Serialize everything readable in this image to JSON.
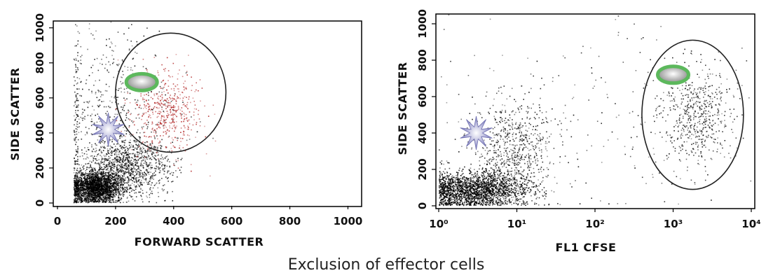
{
  "caption": "Exclusion of effector cells",
  "colors": {
    "main_population": "#000000",
    "gated_population_left": "#b02020",
    "gate_outline": "#222222",
    "effector_marker": "#8c8cc8",
    "target_marker_ring": "#5cb85c",
    "target_marker_fill": "#9a9a9a"
  },
  "chart_data": [
    {
      "type": "scatter",
      "xlabel": "FORWARD SCATTER",
      "ylabel": "SIDE SCATTER",
      "x_scale": "linear",
      "y_scale": "linear",
      "xlim": [
        0,
        1023
      ],
      "ylim": [
        0,
        1023
      ],
      "x_ticks": [
        "0",
        "200",
        "400",
        "600",
        "800",
        "1000"
      ],
      "x_tick_values": [
        0,
        200,
        400,
        600,
        800,
        1000
      ],
      "y_ticks": [
        "0",
        "200",
        "400",
        "600",
        "800",
        "1000"
      ],
      "y_tick_values": [
        0,
        200,
        400,
        600,
        800,
        1000
      ],
      "grid": false,
      "populations": [
        {
          "color": "#000000",
          "count": 2600,
          "x_mean": 130,
          "x_sd": 45,
          "y_mean": 90,
          "y_sd": 45
        },
        {
          "color": "#000000",
          "count": 1100,
          "x_mean": 240,
          "x_sd": 70,
          "y_mean": 210,
          "y_sd": 80
        },
        {
          "color": "#000000",
          "count": 650,
          "x_mean": 170,
          "x_sd": 110,
          "y_mean": 520,
          "y_sd": 260
        },
        {
          "color": "#b02020",
          "count": 500,
          "x_mean": 370,
          "x_sd": 60,
          "y_mean": 520,
          "y_sd": 120
        }
      ],
      "gate": {
        "shape": "ellipse",
        "cx": 390,
        "cy": 630,
        "rx": 190,
        "ry": 340
      },
      "markers": [
        {
          "type": "effector-star",
          "x": 175,
          "y": 420
        },
        {
          "type": "target-cell",
          "x": 290,
          "y": 690
        }
      ]
    },
    {
      "type": "scatter",
      "xlabel": "FL1 CFSE",
      "ylabel": "SIDE SCATTER",
      "x_scale": "log",
      "y_scale": "linear",
      "xlim": [
        1,
        10000
      ],
      "ylim": [
        0,
        1023
      ],
      "x_ticks": [
        "10⁰",
        "10¹",
        "10²",
        "10³",
        "10⁴"
      ],
      "x_tick_values": [
        1,
        10,
        100,
        1000,
        10000
      ],
      "y_ticks": [
        "0",
        "200",
        "400",
        "600",
        "800",
        "1000"
      ],
      "y_tick_values": [
        0,
        200,
        400,
        600,
        800,
        1000
      ],
      "grid": false,
      "populations": [
        {
          "color": "#000000",
          "count": 2700,
          "x_mean": 0.45,
          "x_sd": 0.35,
          "y_mean": 90,
          "y_sd": 50
        },
        {
          "color": "#000000",
          "count": 700,
          "x_mean": 0.95,
          "x_sd": 0.25,
          "y_mean": 300,
          "y_sd": 140
        },
        {
          "color": "#000000",
          "count": 550,
          "x_mean": 3.3,
          "x_sd": 0.22,
          "y_mean": 500,
          "y_sd": 130
        },
        {
          "color": "#000000",
          "count": 220,
          "x_mean": 2.0,
          "x_sd": 1.1,
          "y_mean": 500,
          "y_sd": 280
        }
      ],
      "gate": {
        "shape": "ellipse",
        "cx_log": 3.25,
        "cy": 500,
        "rx_log": 0.65,
        "ry": 410
      },
      "markers": [
        {
          "type": "effector-star",
          "x_log": 0.48,
          "y": 400
        },
        {
          "type": "target-cell",
          "x_log": 3.0,
          "y": 720
        }
      ]
    }
  ]
}
